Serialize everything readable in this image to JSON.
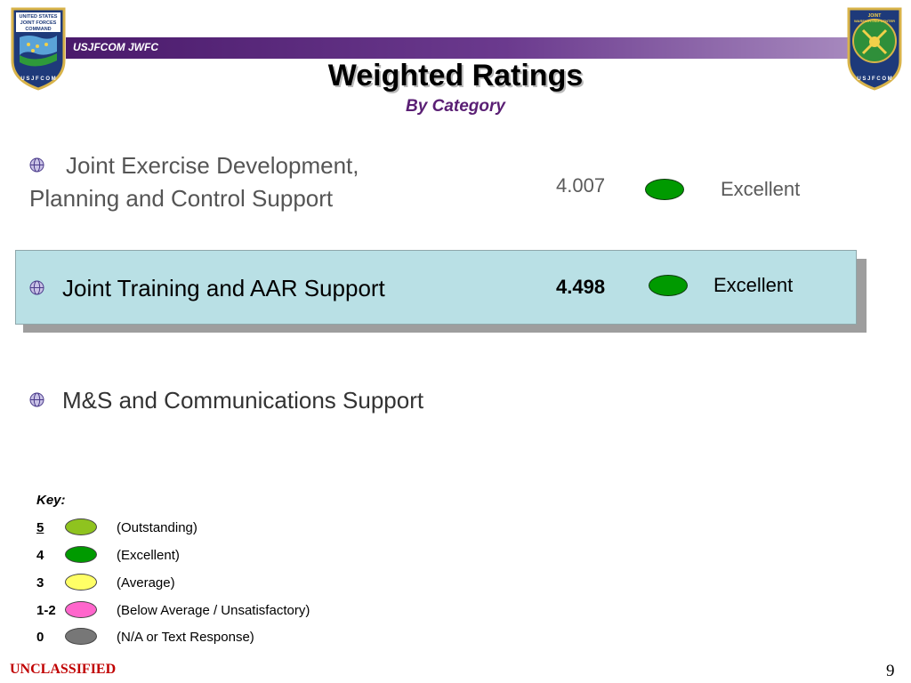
{
  "header": {
    "org_label": "USJFCOM JWFC",
    "left_seal": {
      "icon": "usjfcom-seal",
      "text_lines": [
        "UNITED STATES",
        "JOINT FORCES",
        "COMMAND"
      ],
      "ring_text": "U S J F C O M"
    },
    "right_seal": {
      "icon": "jwfc-seal",
      "text_lines": [
        "JOINT",
        "WARFIGHTING CENTER"
      ],
      "ring_text": "U S J F C O M"
    }
  },
  "title": "Weighted Ratings",
  "subtitle": "By Category",
  "categories": [
    {
      "line1": "Joint Exercise Development,",
      "line2": "Planning and Control Support",
      "score": "4.007",
      "rating": "Excellent",
      "color": "#009a00",
      "highlighted": false
    },
    {
      "line1": "Joint Training and AAR Support",
      "score": "4.498",
      "rating": "Excellent",
      "color": "#009a00",
      "highlighted": true
    },
    {
      "line1": "M&S and Communications Support",
      "highlighted": false
    }
  ],
  "key": {
    "title": "Key:",
    "items": [
      {
        "value": "5",
        "label": "(Outstanding)",
        "color": "#8fc31f"
      },
      {
        "value": "4",
        "label": "(Excellent)",
        "color": "#009a00"
      },
      {
        "value": "3",
        "label": "(Average)",
        "color": "#ffff66"
      },
      {
        "value": "1-2",
        "label": "(Below Average / Unsatisfactory)",
        "color": "#ff66cc"
      },
      {
        "value": "0",
        "label": "(N/A or Text Response)",
        "color": "#777777"
      }
    ]
  },
  "footer": {
    "classification": "UNCLASSIFIED",
    "page_number": "9"
  }
}
